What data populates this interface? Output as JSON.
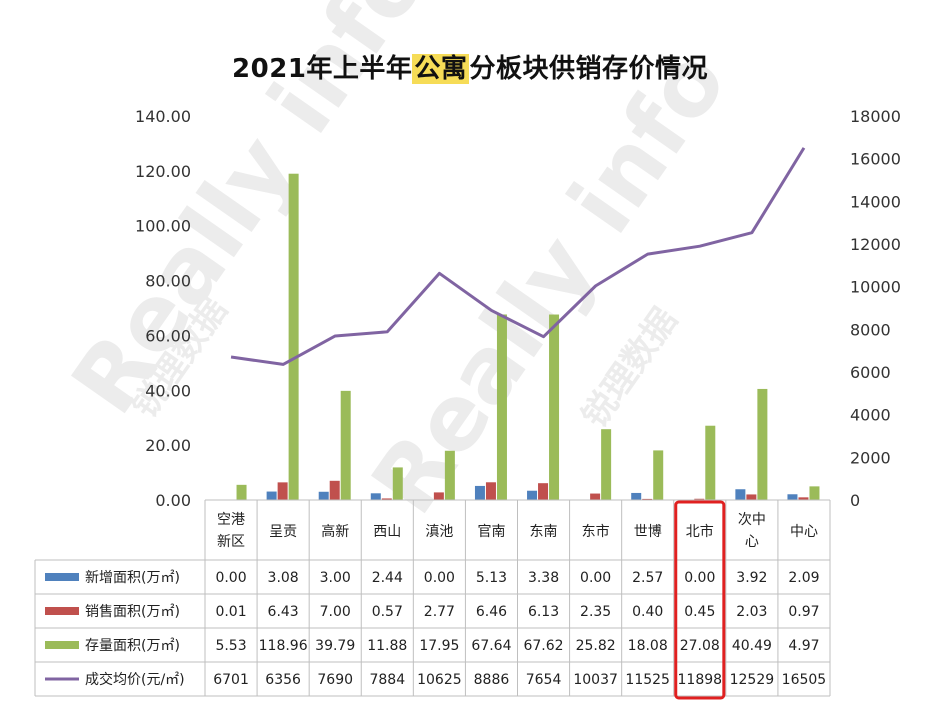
{
  "title": {
    "prefix": "2021年上半年",
    "highlight": "公寓",
    "suffix": "分板块供销存价情况"
  },
  "watermark": {
    "text": "Really info",
    "subtext": "锐理数据"
  },
  "colors": {
    "new_area": "#4f81bd",
    "sold_area": "#c0504d",
    "stock_area": "#9bbb59",
    "avg_price": "#8064a2",
    "highlight_box": "#e02020",
    "grid": "#d9d9d9",
    "table_border": "#bfbfbf"
  },
  "chart_data": {
    "type": "bar",
    "title": "2021年上半年公寓分板块供销存价情况",
    "categories": [
      [
        "空港",
        "新区"
      ],
      [
        "呈贡"
      ],
      [
        "高新"
      ],
      [
        "西山"
      ],
      [
        "滇池"
      ],
      [
        "官南"
      ],
      [
        "东南"
      ],
      [
        "东市"
      ],
      [
        "世博"
      ],
      [
        "北市"
      ],
      [
        "次中",
        "心"
      ],
      [
        "中心"
      ]
    ],
    "series": [
      {
        "name": "新增面积(万㎡)",
        "axis": "left",
        "kind": "bar",
        "values": [
          0.0,
          3.08,
          3.0,
          2.44,
          0.0,
          5.13,
          3.38,
          0.0,
          2.57,
          0.0,
          3.92,
          2.09
        ],
        "labels": [
          "0.00",
          "3.08",
          "3.00",
          "2.44",
          "0.00",
          "5.13",
          "3.38",
          "0.00",
          "2.57",
          "0.00",
          "3.92",
          "2.09"
        ]
      },
      {
        "name": "销售面积(万㎡)",
        "axis": "left",
        "kind": "bar",
        "values": [
          0.01,
          6.43,
          7.0,
          0.57,
          2.77,
          6.46,
          6.13,
          2.35,
          0.4,
          0.45,
          2.03,
          0.97
        ],
        "labels": [
          "0.01",
          "6.43",
          "7.00",
          "0.57",
          "2.77",
          "6.46",
          "6.13",
          "2.35",
          "0.40",
          "0.45",
          "2.03",
          "0.97"
        ]
      },
      {
        "name": "存量面积(万㎡)",
        "axis": "left",
        "kind": "bar",
        "values": [
          5.53,
          118.96,
          39.79,
          11.88,
          17.95,
          67.64,
          67.62,
          25.82,
          18.08,
          27.08,
          40.49,
          4.97
        ],
        "labels": [
          "5.53",
          "118.96",
          "39.79",
          "11.88",
          "17.95",
          "67.64",
          "67.62",
          "25.82",
          "18.08",
          "27.08",
          "40.49",
          "4.97"
        ]
      },
      {
        "name": "成交均价(元/㎡)",
        "axis": "right",
        "kind": "line",
        "values": [
          6701,
          6356,
          7690,
          7884,
          10625,
          8886,
          7654,
          10037,
          11525,
          11898,
          12529,
          16505
        ],
        "labels": [
          "6701",
          "6356",
          "7690",
          "7884",
          "10625",
          "8886",
          "7654",
          "10037",
          "11525",
          "11898",
          "12529",
          "16505"
        ]
      }
    ],
    "ylim": [
      0,
      140
    ],
    "y2lim": [
      0,
      18000
    ],
    "yticks": [
      "0.00",
      "20.00",
      "40.00",
      "60.00",
      "80.00",
      "100.00",
      "120.00",
      "140.00"
    ],
    "y2ticks": [
      "0",
      "2000",
      "4000",
      "6000",
      "8000",
      "10000",
      "12000",
      "14000",
      "16000",
      "18000"
    ],
    "grid": false,
    "legend": "data-table-left",
    "highlighted_category": "北市"
  }
}
